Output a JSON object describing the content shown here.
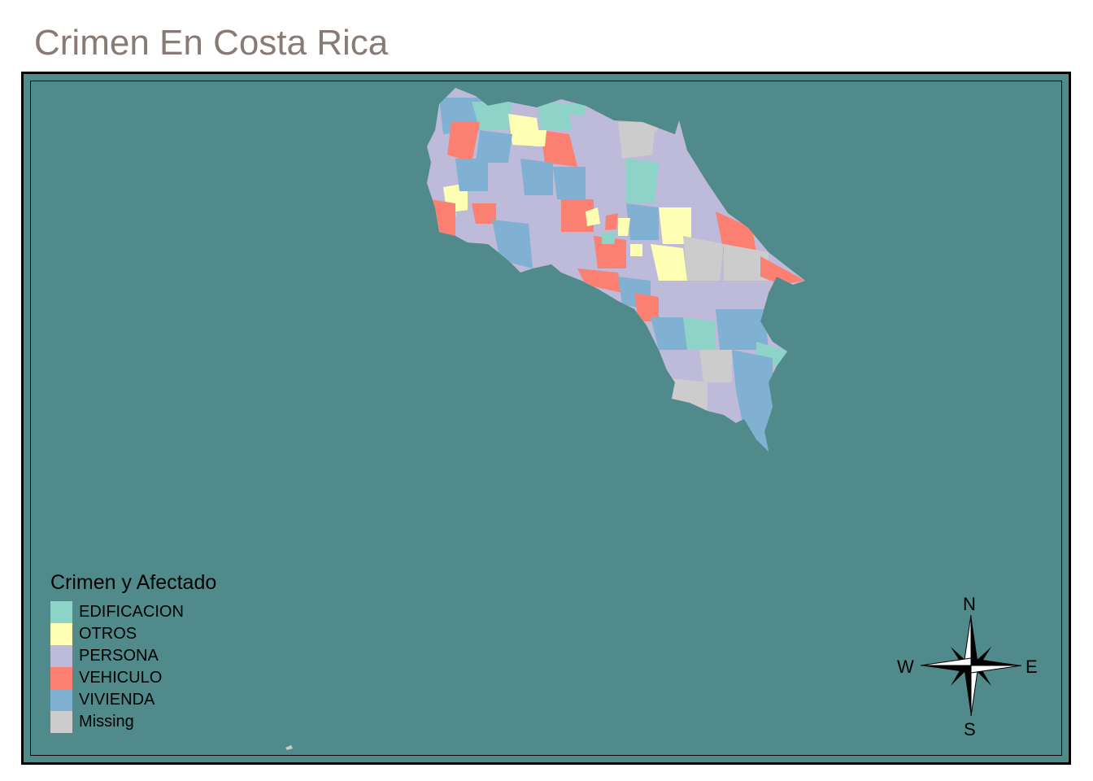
{
  "title": "Crimen En Costa Rica",
  "colors": {
    "ocean": "#508a8a",
    "title": "#8a7a75"
  },
  "legend": {
    "title": "Crimen y Afectado",
    "items": [
      {
        "label": "EDIFICACION",
        "color": "#8dd3c7"
      },
      {
        "label": "OTROS",
        "color": "#ffffb3"
      },
      {
        "label": "PERSONA",
        "color": "#bebada"
      },
      {
        "label": "VEHICULO",
        "color": "#fb8072"
      },
      {
        "label": "VIVIENDA",
        "color": "#80b1d3"
      },
      {
        "label": "Missing",
        "color": "#cccccc"
      }
    ]
  },
  "compass": {
    "n": "N",
    "s": "S",
    "e": "E",
    "w": "W"
  }
}
